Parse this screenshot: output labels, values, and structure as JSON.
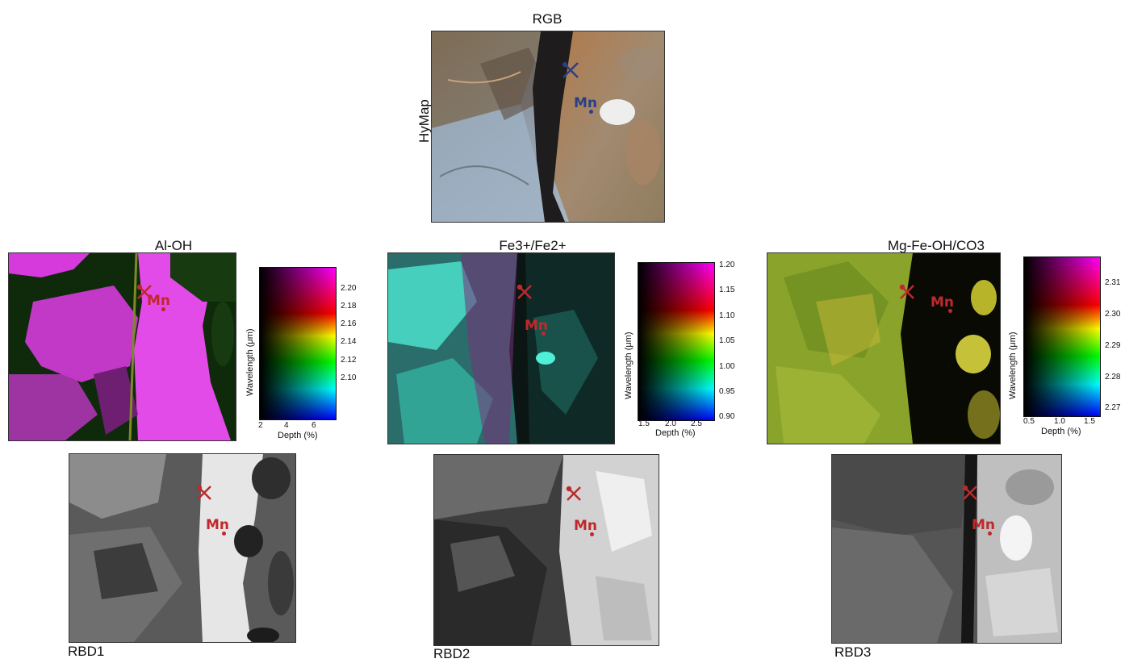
{
  "rgb": {
    "title": "RGB",
    "row_label": "HyMap",
    "mineral": "Mn"
  },
  "panels": [
    {
      "title": "Al-OH",
      "mineral": "Mn",
      "colorbar": {
        "ylabel": "Wavelength (μm)",
        "xlabel": "Depth (%)",
        "yticks": [
          "2.20",
          "2.18",
          "2.16",
          "2.14",
          "2.12",
          "2.10"
        ],
        "xticks": [
          "2",
          "4",
          "6"
        ]
      }
    },
    {
      "title": "Fe3+/Fe2+",
      "mineral": "Mn",
      "colorbar": {
        "ylabel": "Wavelength (μm)",
        "xlabel": "Depth (%)",
        "yticks": [
          "1.20",
          "1.15",
          "1.10",
          "1.05",
          "1.00",
          "0.95",
          "0.90"
        ],
        "xticks": [
          "1.5",
          "2.0",
          "2.5"
        ]
      }
    },
    {
      "title": "Mg-Fe-OH/CO3",
      "mineral": "Mn",
      "colorbar": {
        "ylabel": "Wavelength (μm)",
        "xlabel": "Depth (%)",
        "yticks": [
          "2.31",
          "2.30",
          "2.29",
          "2.28",
          "2.27"
        ],
        "xticks": [
          "0.5",
          "1.0",
          "1.5"
        ]
      }
    }
  ],
  "rbd": [
    {
      "caption": "RBD1",
      "mineral": "Mn"
    },
    {
      "caption": "RBD2",
      "mineral": "Mn"
    },
    {
      "caption": "RBD3",
      "mineral": "Mn"
    }
  ],
  "colors": {
    "marker_red": "#c0282c",
    "marker_blue": "#2b3f86",
    "magenta": "#e040e8",
    "cyan": "#3fe6cf",
    "yellow_green": "#b8cc2c"
  }
}
